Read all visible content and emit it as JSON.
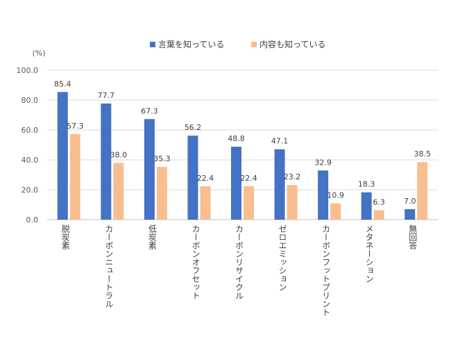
{
  "chart_data": {
    "type": "bar",
    "unit_label": "(%)",
    "categories": [
      "脱炭素",
      "カーボンニュートラル",
      "低炭素",
      "カーボンオフセット",
      "カーボンリサイクル",
      "ゼロエミッション",
      "カーボンフットプリント",
      "メタネーション",
      "無回答"
    ],
    "series": [
      {
        "name": "言葉を知っている",
        "color": "#4472C4",
        "values": [
          85.4,
          77.7,
          67.3,
          56.2,
          48.8,
          47.1,
          32.9,
          18.3,
          7.0
        ]
      },
      {
        "name": "内容も知っている",
        "color": "#F8BE8F",
        "values": [
          57.3,
          38.0,
          35.3,
          22.4,
          22.4,
          23.2,
          10.9,
          6.3,
          38.5
        ]
      }
    ],
    "ylim": [
      0,
      100
    ],
    "yticks": [
      "0.0",
      "20.0",
      "40.0",
      "60.0",
      "80.0",
      "100.0"
    ],
    "grid": true,
    "legend_position": "top"
  }
}
